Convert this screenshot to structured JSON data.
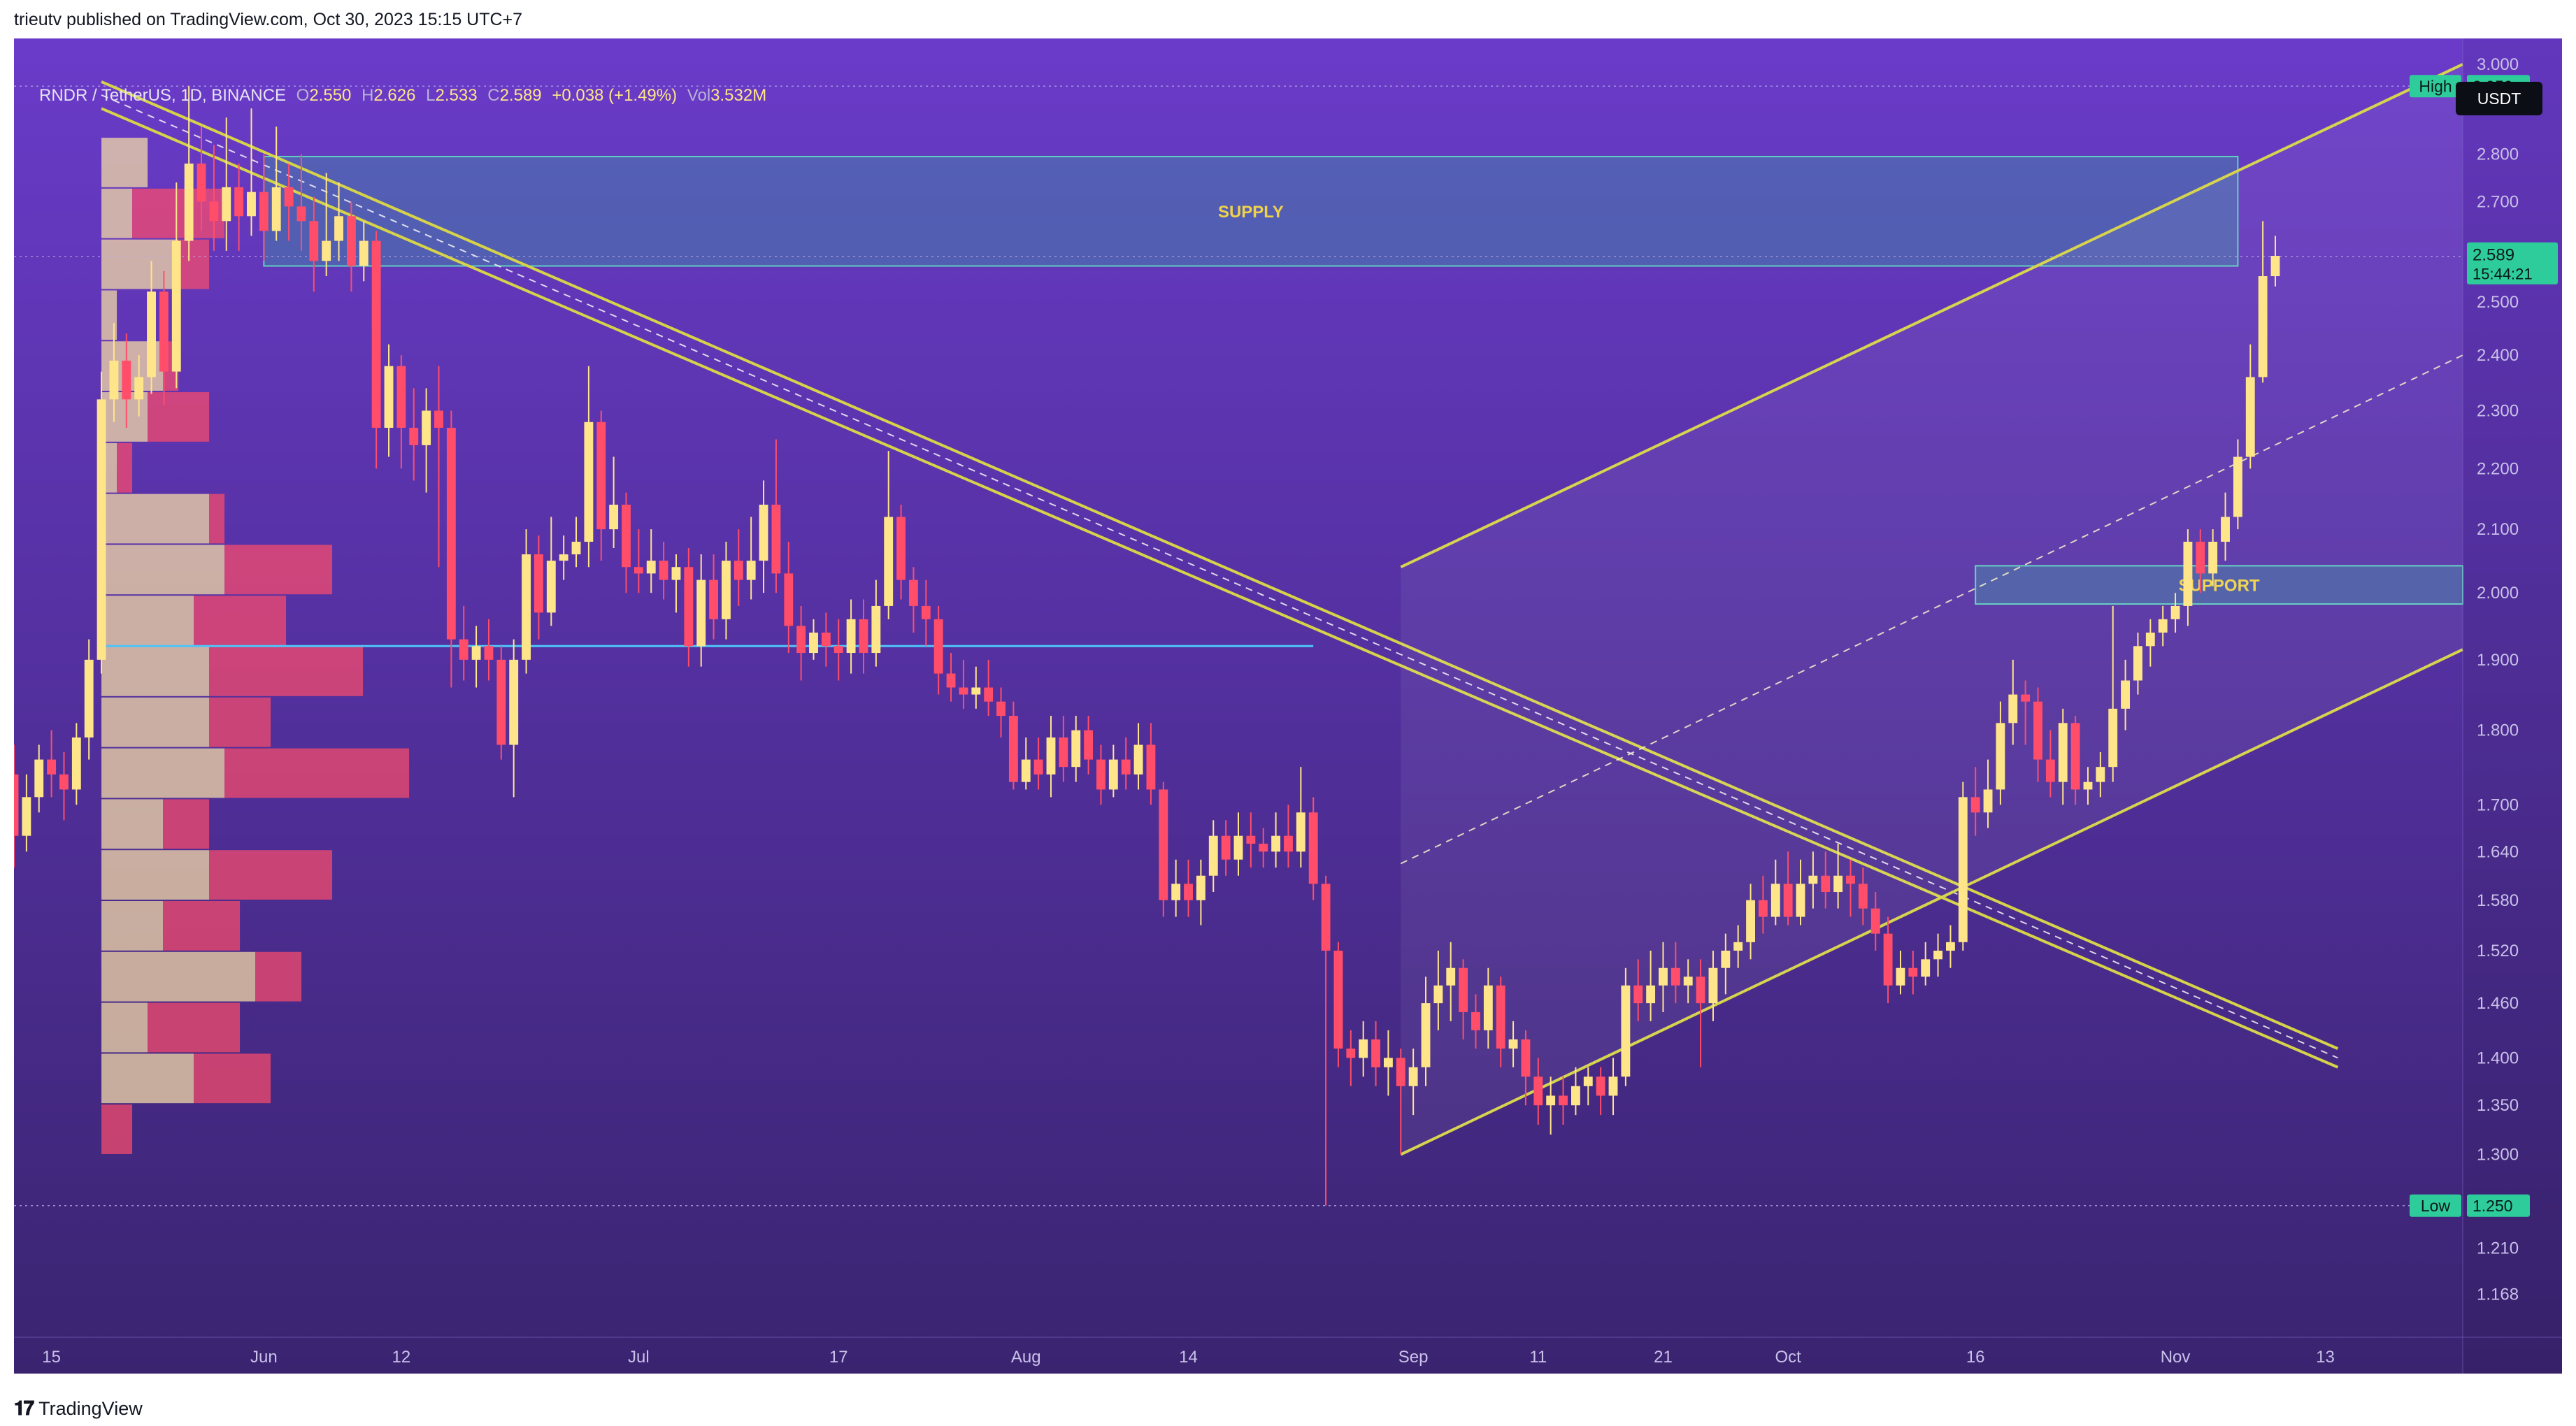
{
  "published_by": "trieutv published on TradingView.com, Oct 30, 2023 15:15 UTC+7",
  "legend": {
    "symbol": "RNDR / TetherUS, 1D, BINANCE",
    "o_label": "O",
    "o_value": "2.550",
    "h_label": "H",
    "h_value": "2.626",
    "l_label": "L",
    "l_value": "2.533",
    "c_label": "C",
    "c_value": "2.589",
    "change": "+0.038 (+1.49%)",
    "vol_label": "Vol",
    "vol_value": "3.532M"
  },
  "currency_button": "USDT",
  "branding": "TradingView",
  "colors": {
    "background": "#5b3aa5",
    "bull": "#ffe58a",
    "bear": "#ff4d6a",
    "zone": "#3f8fa6",
    "trendline": "#d6d34a",
    "poc": "#4fc3f7",
    "price_tag": "#2ecc9a"
  },
  "chart_data": {
    "type": "candlestick",
    "x_ticks": [
      "15",
      "Jun",
      "12",
      "Jul",
      "17",
      "Aug",
      "14",
      "Sep",
      "11",
      "21",
      "Oct",
      "16",
      "Nov",
      "13"
    ],
    "y_ticks": [
      "3.000",
      "2.900",
      "2.800",
      "2.700",
      "2.600",
      "2.500",
      "2.400",
      "2.300",
      "2.200",
      "2.100",
      "2.000",
      "1.900",
      "1.800",
      "1.700",
      "1.640",
      "1.580",
      "1.520",
      "1.460",
      "1.400",
      "1.350",
      "1.300",
      "1.210",
      "1.168"
    ],
    "y_scale": "log",
    "ylim": [
      1.13,
      3.06
    ],
    "xlim": [
      "2023-05-12",
      "2023-11-24"
    ],
    "price_labels": [
      {
        "label": "High",
        "value": "2.950",
        "y": 2.95
      },
      {
        "label": "Low",
        "value": "1.250",
        "y": 1.25
      }
    ],
    "last_price": {
      "value": "2.589",
      "countdown": "15:44:21",
      "y": 2.589
    },
    "zones": [
      {
        "label": "SUPPLY",
        "x0": "2023-06-01",
        "x1": "2023-11-06",
        "y_low": 2.57,
        "y_high": 2.795
      },
      {
        "label": "SUPPORT",
        "x0": "2023-10-16",
        "x1": "2023-11-24",
        "y_low": 1.983,
        "y_high": 2.042
      }
    ],
    "candles": [
      [
        "2023-05-12",
        1.74,
        1.66,
        1.78,
        1.62
      ],
      [
        "2023-05-13",
        1.66,
        1.71,
        1.74,
        1.64
      ],
      [
        "2023-05-14",
        1.71,
        1.76,
        1.78,
        1.69
      ],
      [
        "2023-05-15",
        1.76,
        1.74,
        1.8,
        1.71
      ],
      [
        "2023-05-16",
        1.74,
        1.72,
        1.77,
        1.68
      ],
      [
        "2023-05-17",
        1.72,
        1.79,
        1.81,
        1.7
      ],
      [
        "2023-05-18",
        1.79,
        1.9,
        1.93,
        1.76
      ],
      [
        "2023-05-19",
        1.9,
        2.32,
        2.37,
        1.88
      ],
      [
        "2023-05-20",
        2.32,
        2.39,
        2.46,
        2.28
      ],
      [
        "2023-05-21",
        2.39,
        2.32,
        2.44,
        2.27
      ],
      [
        "2023-05-22",
        2.32,
        2.36,
        2.4,
        2.29
      ],
      [
        "2023-05-23",
        2.36,
        2.52,
        2.58,
        2.33
      ],
      [
        "2023-05-24",
        2.52,
        2.37,
        2.56,
        2.31
      ],
      [
        "2023-05-25",
        2.37,
        2.62,
        2.74,
        2.34
      ],
      [
        "2023-05-26",
        2.62,
        2.78,
        2.95,
        2.58
      ],
      [
        "2023-05-27",
        2.78,
        2.7,
        2.86,
        2.64
      ],
      [
        "2023-05-28",
        2.7,
        2.66,
        2.82,
        2.6
      ],
      [
        "2023-05-29",
        2.66,
        2.73,
        2.88,
        2.6
      ],
      [
        "2023-05-30",
        2.73,
        2.67,
        2.78,
        2.6
      ],
      [
        "2023-05-31",
        2.67,
        2.72,
        2.9,
        2.63
      ],
      [
        "2023-06-01",
        2.72,
        2.64,
        2.8,
        2.58
      ],
      [
        "2023-06-02",
        2.64,
        2.73,
        2.86,
        2.62
      ],
      [
        "2023-06-03",
        2.73,
        2.69,
        2.78,
        2.62
      ],
      [
        "2023-06-04",
        2.69,
        2.66,
        2.8,
        2.6
      ],
      [
        "2023-06-05",
        2.66,
        2.58,
        2.71,
        2.52
      ],
      [
        "2023-06-06",
        2.58,
        2.62,
        2.76,
        2.55
      ],
      [
        "2023-06-07",
        2.62,
        2.67,
        2.74,
        2.58
      ],
      [
        "2023-06-08",
        2.67,
        2.57,
        2.7,
        2.52
      ],
      [
        "2023-06-09",
        2.57,
        2.62,
        2.66,
        2.54
      ],
      [
        "2023-06-10",
        2.62,
        2.27,
        2.64,
        2.2
      ],
      [
        "2023-06-11",
        2.27,
        2.38,
        2.42,
        2.22
      ],
      [
        "2023-06-12",
        2.38,
        2.27,
        2.4,
        2.2
      ],
      [
        "2023-06-13",
        2.27,
        2.24,
        2.34,
        2.18
      ],
      [
        "2023-06-14",
        2.24,
        2.3,
        2.34,
        2.16
      ],
      [
        "2023-06-15",
        2.3,
        2.27,
        2.38,
        2.04
      ],
      [
        "2023-06-16",
        2.27,
        1.93,
        2.3,
        1.86
      ],
      [
        "2023-06-17",
        1.93,
        1.9,
        1.98,
        1.87
      ],
      [
        "2023-06-18",
        1.9,
        1.92,
        1.95,
        1.86
      ],
      [
        "2023-06-19",
        1.92,
        1.9,
        1.96,
        1.87
      ],
      [
        "2023-06-20",
        1.9,
        1.78,
        1.92,
        1.76
      ],
      [
        "2023-06-21",
        1.78,
        1.9,
        1.93,
        1.71
      ],
      [
        "2023-06-22",
        1.9,
        2.06,
        2.1,
        1.88
      ],
      [
        "2023-06-23",
        2.06,
        1.97,
        2.09,
        1.93
      ],
      [
        "2023-06-24",
        1.97,
        2.05,
        2.12,
        1.95
      ],
      [
        "2023-06-25",
        2.05,
        2.06,
        2.09,
        2.02
      ],
      [
        "2023-06-26",
        2.06,
        2.08,
        2.12,
        2.04
      ],
      [
        "2023-06-27",
        2.08,
        2.28,
        2.38,
        2.04
      ],
      [
        "2023-06-28",
        2.28,
        2.1,
        2.3,
        2.05
      ],
      [
        "2023-06-29",
        2.1,
        2.14,
        2.22,
        2.07
      ],
      [
        "2023-06-30",
        2.14,
        2.04,
        2.16,
        2.0
      ],
      [
        "2023-07-01",
        2.04,
        2.03,
        2.1,
        2.0
      ],
      [
        "2023-07-02",
        2.03,
        2.05,
        2.1,
        2.0
      ],
      [
        "2023-07-03",
        2.05,
        2.02,
        2.08,
        1.99
      ],
      [
        "2023-07-04",
        2.02,
        2.04,
        2.06,
        1.97
      ],
      [
        "2023-07-05",
        2.04,
        1.92,
        2.07,
        1.89
      ],
      [
        "2023-07-06",
        1.92,
        2.02,
        2.06,
        1.89
      ],
      [
        "2023-07-07",
        2.02,
        1.96,
        2.06,
        1.93
      ],
      [
        "2023-07-08",
        1.96,
        2.05,
        2.08,
        1.93
      ],
      [
        "2023-07-09",
        2.05,
        2.02,
        2.1,
        1.98
      ],
      [
        "2023-07-10",
        2.02,
        2.05,
        2.12,
        1.99
      ],
      [
        "2023-07-11",
        2.05,
        2.14,
        2.18,
        2.0
      ],
      [
        "2023-07-12",
        2.14,
        2.03,
        2.25,
        2.0
      ],
      [
        "2023-07-13",
        2.03,
        1.95,
        2.08,
        1.91
      ],
      [
        "2023-07-14",
        1.95,
        1.91,
        1.98,
        1.87
      ],
      [
        "2023-07-15",
        1.91,
        1.94,
        1.96,
        1.9
      ],
      [
        "2023-07-16",
        1.94,
        1.92,
        1.97,
        1.89
      ],
      [
        "2023-07-17",
        1.92,
        1.91,
        1.96,
        1.87
      ],
      [
        "2023-07-18",
        1.91,
        1.96,
        1.99,
        1.88
      ],
      [
        "2023-07-19",
        1.96,
        1.91,
        1.99,
        1.88
      ],
      [
        "2023-07-20",
        1.91,
        1.98,
        2.02,
        1.89
      ],
      [
        "2023-07-21",
        1.98,
        2.12,
        2.23,
        1.96
      ],
      [
        "2023-07-22",
        2.12,
        2.02,
        2.14,
        1.99
      ],
      [
        "2023-07-23",
        2.02,
        1.98,
        2.04,
        1.94
      ],
      [
        "2023-07-24",
        1.98,
        1.96,
        2.02,
        1.92
      ],
      [
        "2023-07-25",
        1.96,
        1.88,
        1.98,
        1.85
      ],
      [
        "2023-07-26",
        1.88,
        1.86,
        1.91,
        1.84
      ],
      [
        "2023-07-27",
        1.86,
        1.85,
        1.9,
        1.83
      ],
      [
        "2023-07-28",
        1.85,
        1.86,
        1.89,
        1.83
      ],
      [
        "2023-07-29",
        1.86,
        1.84,
        1.9,
        1.82
      ],
      [
        "2023-07-30",
        1.84,
        1.82,
        1.86,
        1.79
      ],
      [
        "2023-07-31",
        1.82,
        1.73,
        1.84,
        1.72
      ],
      [
        "2023-08-01",
        1.73,
        1.76,
        1.79,
        1.72
      ],
      [
        "2023-08-02",
        1.76,
        1.74,
        1.79,
        1.72
      ],
      [
        "2023-08-03",
        1.74,
        1.79,
        1.82,
        1.71
      ],
      [
        "2023-08-04",
        1.79,
        1.75,
        1.82,
        1.73
      ],
      [
        "2023-08-05",
        1.75,
        1.8,
        1.82,
        1.73
      ],
      [
        "2023-08-06",
        1.8,
        1.76,
        1.82,
        1.74
      ],
      [
        "2023-08-07",
        1.76,
        1.72,
        1.78,
        1.7
      ],
      [
        "2023-08-08",
        1.72,
        1.76,
        1.78,
        1.71
      ],
      [
        "2023-08-09",
        1.76,
        1.74,
        1.79,
        1.72
      ],
      [
        "2023-08-10",
        1.74,
        1.78,
        1.81,
        1.72
      ],
      [
        "2023-08-11",
        1.78,
        1.72,
        1.81,
        1.7
      ],
      [
        "2023-08-12",
        1.72,
        1.58,
        1.73,
        1.56
      ],
      [
        "2023-08-13",
        1.58,
        1.6,
        1.63,
        1.56
      ],
      [
        "2023-08-14",
        1.6,
        1.58,
        1.63,
        1.56
      ],
      [
        "2023-08-15",
        1.58,
        1.61,
        1.63,
        1.55
      ],
      [
        "2023-08-16",
        1.61,
        1.66,
        1.68,
        1.59
      ],
      [
        "2023-08-17",
        1.66,
        1.63,
        1.68,
        1.61
      ],
      [
        "2023-08-18",
        1.63,
        1.66,
        1.69,
        1.61
      ],
      [
        "2023-08-19",
        1.66,
        1.65,
        1.69,
        1.62
      ],
      [
        "2023-08-20",
        1.65,
        1.64,
        1.67,
        1.62
      ],
      [
        "2023-08-21",
        1.64,
        1.66,
        1.69,
        1.62
      ],
      [
        "2023-08-22",
        1.66,
        1.64,
        1.7,
        1.62
      ],
      [
        "2023-08-23",
        1.64,
        1.69,
        1.75,
        1.62
      ],
      [
        "2023-08-24",
        1.69,
        1.6,
        1.71,
        1.58
      ],
      [
        "2023-08-25",
        1.6,
        1.52,
        1.61,
        1.25
      ],
      [
        "2023-08-26",
        1.52,
        1.41,
        1.53,
        1.39
      ],
      [
        "2023-08-27",
        1.41,
        1.4,
        1.43,
        1.37
      ],
      [
        "2023-08-28",
        1.4,
        1.42,
        1.44,
        1.38
      ],
      [
        "2023-08-29",
        1.42,
        1.39,
        1.44,
        1.37
      ],
      [
        "2023-08-30",
        1.39,
        1.4,
        1.43,
        1.36
      ],
      [
        "2023-08-31",
        1.4,
        1.37,
        1.41,
        1.3
      ],
      [
        "2023-09-01",
        1.37,
        1.39,
        1.41,
        1.34
      ],
      [
        "2023-09-02",
        1.39,
        1.46,
        1.49,
        1.37
      ],
      [
        "2023-09-03",
        1.46,
        1.48,
        1.52,
        1.43
      ],
      [
        "2023-09-04",
        1.48,
        1.5,
        1.53,
        1.44
      ],
      [
        "2023-09-05",
        1.5,
        1.45,
        1.51,
        1.42
      ],
      [
        "2023-09-06",
        1.45,
        1.43,
        1.47,
        1.41
      ],
      [
        "2023-09-07",
        1.43,
        1.48,
        1.5,
        1.41
      ],
      [
        "2023-09-08",
        1.48,
        1.41,
        1.49,
        1.39
      ],
      [
        "2023-09-09",
        1.41,
        1.42,
        1.44,
        1.39
      ],
      [
        "2023-09-10",
        1.42,
        1.38,
        1.43,
        1.35
      ],
      [
        "2023-09-11",
        1.38,
        1.35,
        1.4,
        1.33
      ],
      [
        "2023-09-12",
        1.35,
        1.36,
        1.38,
        1.32
      ],
      [
        "2023-09-13",
        1.36,
        1.35,
        1.38,
        1.33
      ],
      [
        "2023-09-14",
        1.35,
        1.37,
        1.39,
        1.34
      ],
      [
        "2023-09-15",
        1.37,
        1.38,
        1.39,
        1.35
      ],
      [
        "2023-09-16",
        1.38,
        1.36,
        1.39,
        1.34
      ],
      [
        "2023-09-17",
        1.36,
        1.38,
        1.4,
        1.34
      ],
      [
        "2023-09-18",
        1.38,
        1.48,
        1.5,
        1.37
      ],
      [
        "2023-09-19",
        1.48,
        1.46,
        1.51,
        1.44
      ],
      [
        "2023-09-20",
        1.46,
        1.48,
        1.52,
        1.44
      ],
      [
        "2023-09-21",
        1.48,
        1.5,
        1.53,
        1.45
      ],
      [
        "2023-09-22",
        1.5,
        1.48,
        1.53,
        1.46
      ],
      [
        "2023-09-23",
        1.48,
        1.49,
        1.51,
        1.46
      ],
      [
        "2023-09-24",
        1.49,
        1.46,
        1.51,
        1.39
      ],
      [
        "2023-09-25",
        1.46,
        1.5,
        1.52,
        1.44
      ],
      [
        "2023-09-26",
        1.5,
        1.52,
        1.54,
        1.47
      ],
      [
        "2023-09-27",
        1.52,
        1.53,
        1.55,
        1.5
      ],
      [
        "2023-09-28",
        1.53,
        1.58,
        1.6,
        1.51
      ],
      [
        "2023-09-29",
        1.58,
        1.56,
        1.61,
        1.54
      ],
      [
        "2023-09-30",
        1.56,
        1.6,
        1.63,
        1.55
      ],
      [
        "2023-10-01",
        1.6,
        1.56,
        1.64,
        1.55
      ],
      [
        "2023-10-02",
        1.56,
        1.6,
        1.63,
        1.55
      ],
      [
        "2023-10-03",
        1.6,
        1.61,
        1.64,
        1.57
      ],
      [
        "2023-10-04",
        1.61,
        1.59,
        1.64,
        1.57
      ],
      [
        "2023-10-05",
        1.59,
        1.61,
        1.65,
        1.57
      ],
      [
        "2023-10-06",
        1.61,
        1.6,
        1.63,
        1.56
      ],
      [
        "2023-10-07",
        1.6,
        1.57,
        1.62,
        1.55
      ],
      [
        "2023-10-08",
        1.57,
        1.54,
        1.59,
        1.52
      ],
      [
        "2023-10-09",
        1.54,
        1.48,
        1.56,
        1.46
      ],
      [
        "2023-10-10",
        1.48,
        1.5,
        1.52,
        1.47
      ],
      [
        "2023-10-11",
        1.5,
        1.49,
        1.52,
        1.47
      ],
      [
        "2023-10-12",
        1.49,
        1.51,
        1.53,
        1.48
      ],
      [
        "2023-10-13",
        1.51,
        1.52,
        1.54,
        1.49
      ],
      [
        "2023-10-14",
        1.52,
        1.53,
        1.55,
        1.5
      ],
      [
        "2023-10-15",
        1.53,
        1.71,
        1.73,
        1.52
      ],
      [
        "2023-10-16",
        1.71,
        1.69,
        1.75,
        1.66
      ],
      [
        "2023-10-17",
        1.69,
        1.72,
        1.76,
        1.67
      ],
      [
        "2023-10-18",
        1.72,
        1.81,
        1.84,
        1.7
      ],
      [
        "2023-10-19",
        1.81,
        1.85,
        1.9,
        1.78
      ],
      [
        "2023-10-20",
        1.85,
        1.84,
        1.87,
        1.78
      ],
      [
        "2023-10-21",
        1.84,
        1.76,
        1.86,
        1.73
      ],
      [
        "2023-10-22",
        1.76,
        1.73,
        1.8,
        1.71
      ],
      [
        "2023-10-23",
        1.73,
        1.81,
        1.83,
        1.7
      ],
      [
        "2023-10-24",
        1.81,
        1.72,
        1.82,
        1.7
      ],
      [
        "2023-10-25",
        1.72,
        1.73,
        1.75,
        1.7
      ],
      [
        "2023-10-26",
        1.73,
        1.75,
        1.77,
        1.71
      ],
      [
        "2023-10-27",
        1.75,
        1.83,
        1.98,
        1.73
      ],
      [
        "2023-10-28",
        1.83,
        1.87,
        1.9,
        1.8
      ],
      [
        "2023-10-29",
        1.87,
        1.92,
        1.94,
        1.85
      ],
      [
        "2023-10-30",
        1.92,
        1.94,
        1.96,
        1.89
      ],
      [
        "2023-10-31",
        1.94,
        1.96,
        1.98,
        1.92
      ],
      [
        "2023-11-01",
        1.96,
        1.98,
        2.0,
        1.94
      ],
      [
        "2023-11-02",
        1.98,
        2.08,
        2.1,
        1.95
      ],
      [
        "2023-11-03",
        2.08,
        2.03,
        2.1,
        2.0
      ],
      [
        "2023-11-04",
        2.03,
        2.08,
        2.1,
        2.01
      ],
      [
        "2023-11-05",
        2.08,
        2.12,
        2.16,
        2.05
      ],
      [
        "2023-11-06",
        2.12,
        2.22,
        2.25,
        2.1
      ],
      [
        "2023-11-07",
        2.22,
        2.36,
        2.42,
        2.2
      ],
      [
        "2023-11-08",
        2.36,
        2.55,
        2.66,
        2.35
      ],
      [
        "2023-11-09",
        2.55,
        2.59,
        2.63,
        2.53
      ]
    ]
  }
}
